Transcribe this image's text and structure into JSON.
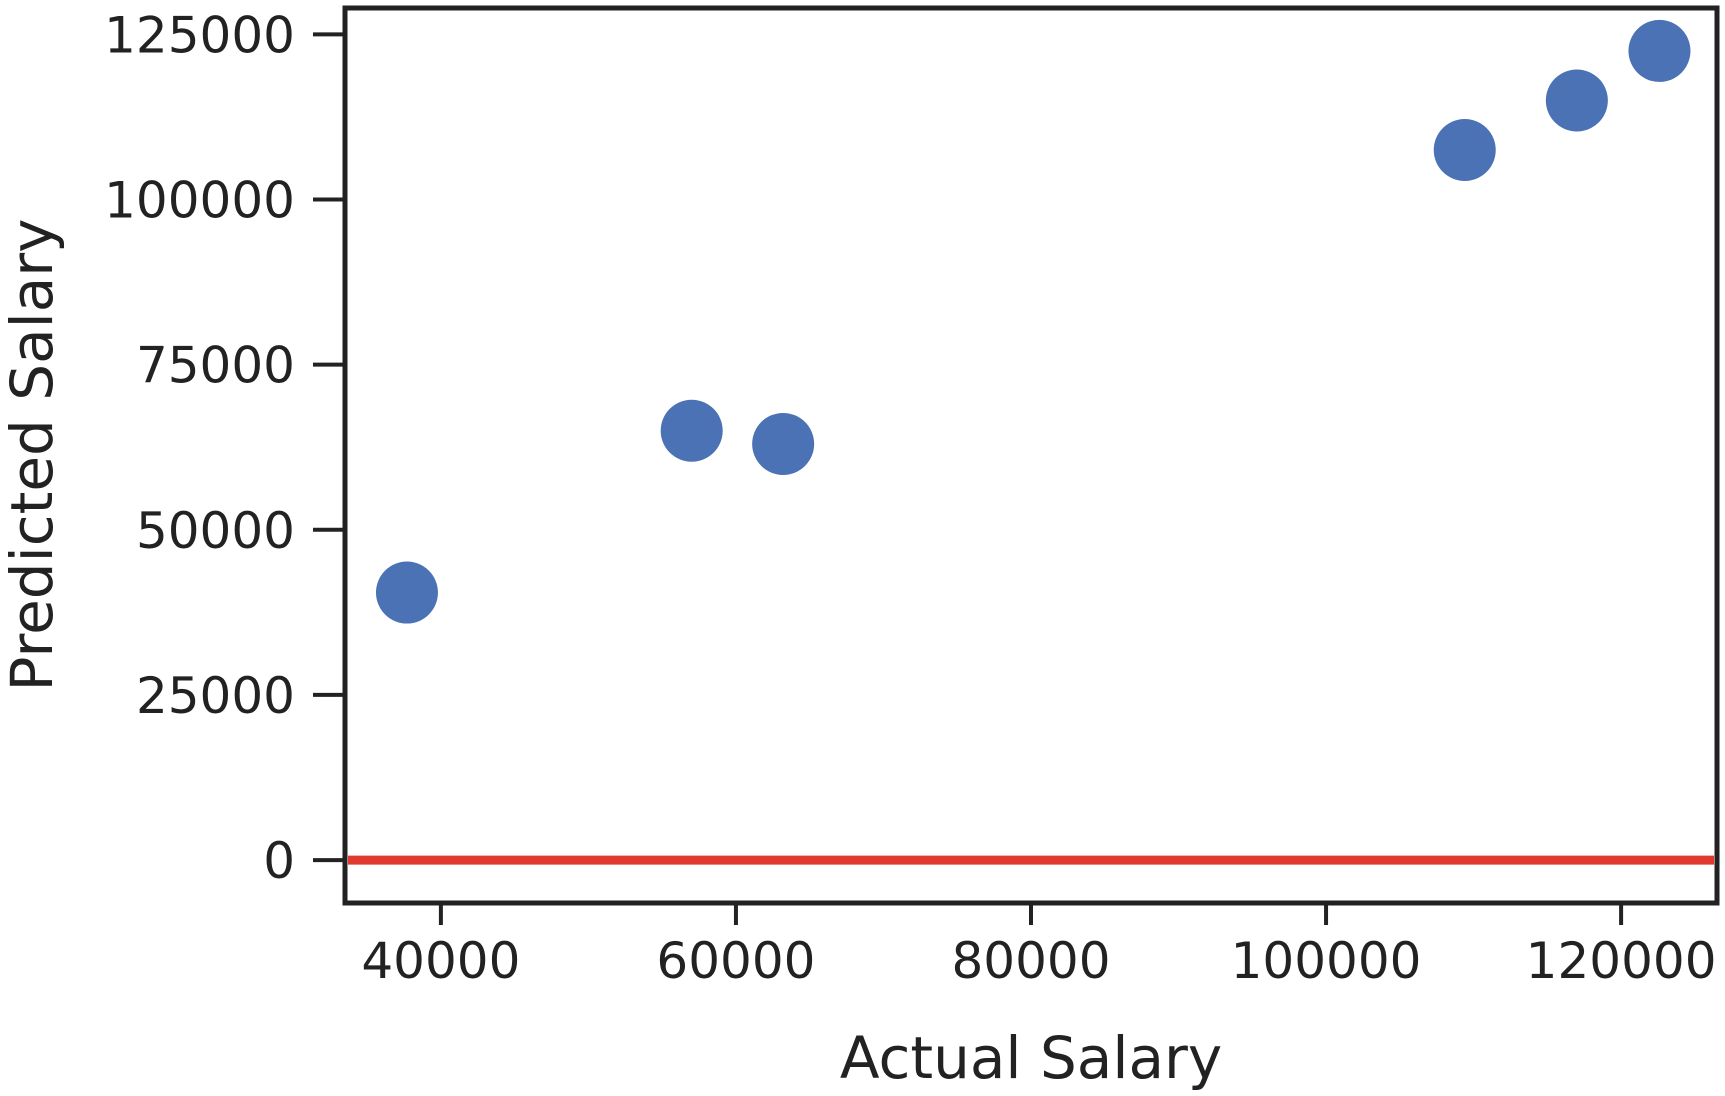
{
  "chart_data": {
    "type": "scatter",
    "title": "",
    "xlabel": "Actual Salary",
    "ylabel": "Predicted Salary",
    "xlim": [
      33500,
      126500
    ],
    "ylim": [
      -6500,
      129000
    ],
    "x_ticks": [
      40000,
      60000,
      80000,
      100000,
      120000
    ],
    "y_ticks": [
      0,
      25000,
      50000,
      75000,
      100000,
      125000
    ],
    "x_tick_labels": [
      "40000",
      "60000",
      "80000",
      "100000",
      "120000"
    ],
    "y_tick_labels": [
      "0",
      "25000",
      "50000",
      "75000",
      "100000",
      "125000"
    ],
    "grid": false,
    "legend": "none",
    "series": [
      {
        "color": "#4a72b5",
        "points": [
          {
            "x": 37700,
            "y": 40500
          },
          {
            "x": 57000,
            "y": 65000
          },
          {
            "x": 63200,
            "y": 63000
          },
          {
            "x": 109400,
            "y": 107500
          },
          {
            "x": 117000,
            "y": 115000
          },
          {
            "x": 122600,
            "y": 122500
          }
        ]
      }
    ],
    "reference_line": {
      "y": 0,
      "color": "#e0392e"
    },
    "frame_color": "#222222"
  }
}
